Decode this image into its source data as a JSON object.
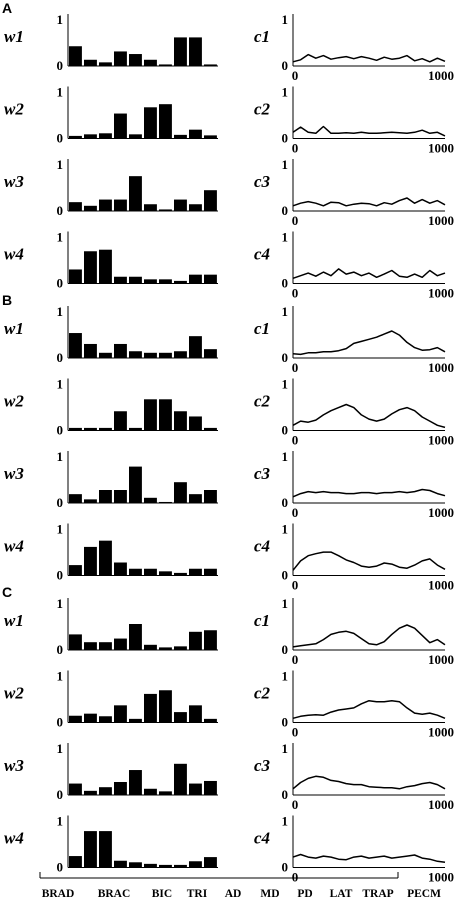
{
  "muscle_labels": [
    "BRAD",
    "BRAC",
    "BIC",
    "TRI",
    "AD",
    "MD",
    "PD",
    "LAT",
    "TRAP",
    "PECM"
  ],
  "chart_data": [
    {
      "panel": "A",
      "type": "bar",
      "weight_ylim": [
        0,
        1
      ],
      "curve_xlim": [
        0,
        1000
      ],
      "curve_ylim": [
        0,
        1
      ],
      "rows": [
        {
          "w_label": "w1",
          "c_label": "c1",
          "weights": [
            0.38,
            0.12,
            0.07,
            0.28,
            0.23,
            0.12,
            0.03,
            0.55,
            0.55,
            0.03
          ],
          "curve": {
            "x": [
              0,
              50,
              100,
              150,
              200,
              250,
              300,
              350,
              400,
              450,
              500,
              550,
              600,
              650,
              700,
              750,
              800,
              850,
              900,
              950,
              1000
            ],
            "y": [
              0.08,
              0.12,
              0.22,
              0.15,
              0.2,
              0.13,
              0.16,
              0.18,
              0.14,
              0.18,
              0.15,
              0.11,
              0.17,
              0.13,
              0.15,
              0.2,
              0.1,
              0.14,
              0.08,
              0.15,
              0.09
            ]
          }
        },
        {
          "w_label": "w2",
          "c_label": "c2",
          "weights": [
            0.05,
            0.08,
            0.1,
            0.48,
            0.08,
            0.6,
            0.66,
            0.07,
            0.17,
            0.06
          ],
          "curve": {
            "x": [
              0,
              50,
              100,
              150,
              200,
              250,
              300,
              350,
              400,
              450,
              500,
              550,
              600,
              650,
              700,
              750,
              800,
              850,
              900,
              950,
              1000
            ],
            "y": [
              0.12,
              0.22,
              0.12,
              0.1,
              0.23,
              0.1,
              0.1,
              0.11,
              0.1,
              0.12,
              0.1,
              0.1,
              0.11,
              0.12,
              0.11,
              0.1,
              0.12,
              0.16,
              0.1,
              0.12,
              0.05
            ]
          }
        },
        {
          "w_label": "w3",
          "c_label": "c3",
          "weights": [
            0.17,
            0.1,
            0.22,
            0.22,
            0.67,
            0.13,
            0.03,
            0.22,
            0.13,
            0.4
          ],
          "curve": {
            "x": [
              0,
              50,
              100,
              150,
              200,
              250,
              300,
              350,
              400,
              450,
              500,
              550,
              600,
              650,
              700,
              750,
              800,
              850,
              900,
              950,
              1000
            ],
            "y": [
              0.1,
              0.15,
              0.18,
              0.15,
              0.1,
              0.17,
              0.16,
              0.1,
              0.13,
              0.15,
              0.14,
              0.1,
              0.16,
              0.13,
              0.2,
              0.25,
              0.15,
              0.22,
              0.15,
              0.2,
              0.12
            ]
          }
        },
        {
          "w_label": "w4",
          "c_label": "c4",
          "weights": [
            0.27,
            0.62,
            0.65,
            0.13,
            0.13,
            0.08,
            0.08,
            0.05,
            0.17,
            0.17
          ],
          "curve": {
            "x": [
              0,
              50,
              100,
              150,
              200,
              250,
              300,
              350,
              400,
              450,
              500,
              550,
              600,
              650,
              700,
              750,
              800,
              850,
              900,
              950,
              1000
            ],
            "y": [
              0.1,
              0.15,
              0.2,
              0.14,
              0.22,
              0.15,
              0.28,
              0.18,
              0.22,
              0.15,
              0.2,
              0.12,
              0.18,
              0.25,
              0.14,
              0.12,
              0.18,
              0.12,
              0.25,
              0.15,
              0.2
            ]
          }
        }
      ]
    },
    {
      "panel": "B",
      "type": "bar",
      "weight_ylim": [
        0,
        1
      ],
      "curve_xlim": [
        0,
        1000
      ],
      "curve_ylim": [
        0,
        1
      ],
      "rows": [
        {
          "w_label": "w1",
          "c_label": "c1",
          "weights": [
            0.48,
            0.27,
            0.1,
            0.27,
            0.13,
            0.1,
            0.1,
            0.13,
            0.42,
            0.17
          ],
          "curve": {
            "x": [
              0,
              50,
              100,
              150,
              200,
              250,
              300,
              350,
              400,
              450,
              500,
              550,
              600,
              650,
              700,
              750,
              800,
              850,
              900,
              950,
              1000
            ],
            "y": [
              0.08,
              0.07,
              0.1,
              0.1,
              0.12,
              0.12,
              0.14,
              0.18,
              0.28,
              0.32,
              0.36,
              0.4,
              0.46,
              0.52,
              0.44,
              0.3,
              0.2,
              0.15,
              0.16,
              0.2,
              0.12
            ]
          }
        },
        {
          "w_label": "w2",
          "c_label": "c2",
          "weights": [
            0.05,
            0.05,
            0.05,
            0.37,
            0.05,
            0.6,
            0.6,
            0.37,
            0.27,
            0.05
          ],
          "curve": {
            "x": [
              0,
              50,
              100,
              150,
              200,
              250,
              300,
              350,
              400,
              450,
              500,
              550,
              600,
              650,
              700,
              750,
              800,
              850,
              900,
              950,
              1000
            ],
            "y": [
              0.1,
              0.18,
              0.16,
              0.2,
              0.3,
              0.38,
              0.44,
              0.5,
              0.44,
              0.3,
              0.22,
              0.18,
              0.22,
              0.32,
              0.4,
              0.44,
              0.38,
              0.26,
              0.18,
              0.1,
              0.06
            ]
          }
        },
        {
          "w_label": "w3",
          "c_label": "c3",
          "weights": [
            0.17,
            0.07,
            0.25,
            0.25,
            0.7,
            0.1,
            0.02,
            0.4,
            0.17,
            0.25
          ],
          "curve": {
            "x": [
              0,
              50,
              100,
              150,
              200,
              250,
              300,
              350,
              400,
              450,
              500,
              550,
              600,
              650,
              700,
              750,
              800,
              850,
              900,
              950,
              1000
            ],
            "y": [
              0.12,
              0.18,
              0.22,
              0.2,
              0.22,
              0.2,
              0.2,
              0.18,
              0.18,
              0.2,
              0.2,
              0.18,
              0.2,
              0.2,
              0.22,
              0.2,
              0.22,
              0.26,
              0.24,
              0.18,
              0.14
            ]
          }
        },
        {
          "w_label": "w4",
          "c_label": "c4",
          "weights": [
            0.2,
            0.55,
            0.67,
            0.25,
            0.13,
            0.13,
            0.08,
            0.05,
            0.13,
            0.13
          ],
          "curve": {
            "x": [
              0,
              50,
              100,
              150,
              200,
              250,
              300,
              350,
              400,
              450,
              500,
              550,
              600,
              650,
              700,
              750,
              800,
              850,
              900,
              950,
              1000
            ],
            "y": [
              0.1,
              0.28,
              0.38,
              0.42,
              0.45,
              0.45,
              0.38,
              0.3,
              0.25,
              0.18,
              0.16,
              0.18,
              0.24,
              0.22,
              0.16,
              0.14,
              0.2,
              0.28,
              0.32,
              0.2,
              0.12
            ]
          }
        }
      ]
    },
    {
      "panel": "C",
      "type": "bar",
      "weight_ylim": [
        0,
        1
      ],
      "curve_xlim": [
        0,
        1000
      ],
      "curve_ylim": [
        0,
        1
      ],
      "rows": [
        {
          "w_label": "w1",
          "c_label": "c1",
          "weights": [
            0.3,
            0.15,
            0.15,
            0.22,
            0.5,
            0.1,
            0.05,
            0.07,
            0.35,
            0.38
          ],
          "curve": {
            "x": [
              0,
              50,
              100,
              150,
              200,
              250,
              300,
              350,
              400,
              450,
              500,
              550,
              600,
              650,
              700,
              750,
              800,
              850,
              900,
              950,
              1000
            ],
            "y": [
              0.06,
              0.08,
              0.1,
              0.12,
              0.2,
              0.3,
              0.34,
              0.36,
              0.32,
              0.22,
              0.12,
              0.1,
              0.16,
              0.3,
              0.42,
              0.48,
              0.42,
              0.28,
              0.14,
              0.2,
              0.1
            ]
          }
        },
        {
          "w_label": "w2",
          "c_label": "c2",
          "weights": [
            0.13,
            0.17,
            0.12,
            0.33,
            0.07,
            0.55,
            0.62,
            0.2,
            0.33,
            0.07
          ],
          "curve": {
            "x": [
              0,
              50,
              100,
              150,
              200,
              250,
              300,
              350,
              400,
              450,
              500,
              550,
              600,
              650,
              700,
              750,
              800,
              850,
              900,
              950,
              1000
            ],
            "y": [
              0.08,
              0.12,
              0.14,
              0.15,
              0.14,
              0.2,
              0.24,
              0.26,
              0.28,
              0.36,
              0.42,
              0.4,
              0.4,
              0.42,
              0.4,
              0.28,
              0.18,
              0.16,
              0.18,
              0.14,
              0.08
            ]
          }
        },
        {
          "w_label": "w3",
          "c_label": "c3",
          "weights": [
            0.22,
            0.08,
            0.15,
            0.25,
            0.48,
            0.12,
            0.07,
            0.6,
            0.22,
            0.27
          ],
          "curve": {
            "x": [
              0,
              50,
              100,
              150,
              200,
              250,
              300,
              350,
              400,
              450,
              500,
              550,
              600,
              650,
              700,
              750,
              800,
              850,
              900,
              950,
              1000
            ],
            "y": [
              0.12,
              0.24,
              0.32,
              0.36,
              0.34,
              0.28,
              0.26,
              0.22,
              0.2,
              0.2,
              0.16,
              0.15,
              0.14,
              0.14,
              0.12,
              0.16,
              0.18,
              0.22,
              0.24,
              0.2,
              0.12
            ]
          }
        },
        {
          "w_label": "w4",
          "c_label": "c4",
          "weights": [
            0.22,
            0.7,
            0.7,
            0.13,
            0.1,
            0.07,
            0.05,
            0.05,
            0.12,
            0.2
          ],
          "curve": {
            "x": [
              0,
              50,
              100,
              150,
              200,
              250,
              300,
              350,
              400,
              450,
              500,
              550,
              600,
              650,
              700,
              750,
              800,
              850,
              900,
              950,
              1000
            ],
            "y": [
              0.2,
              0.25,
              0.2,
              0.18,
              0.22,
              0.2,
              0.16,
              0.15,
              0.2,
              0.22,
              0.18,
              0.2,
              0.22,
              0.18,
              0.2,
              0.22,
              0.24,
              0.18,
              0.16,
              0.12,
              0.1
            ]
          }
        }
      ]
    }
  ]
}
